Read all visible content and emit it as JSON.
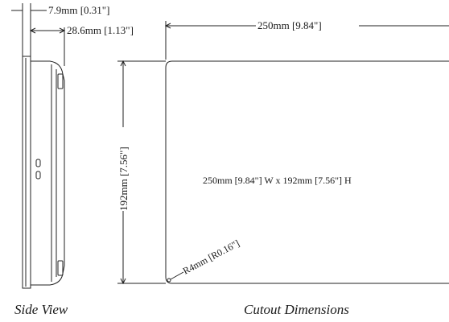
{
  "side_view": {
    "dim_bezel": "7.9mm [0.31\"]",
    "dim_depth": "28.6mm [1.13\"]",
    "caption": "Side View"
  },
  "cutout": {
    "dim_width": "250mm [9.84\"]",
    "dim_height": "192mm [7.56\"]",
    "size_text": "250mm [9.84\"] W x 192mm [7.56\"] H",
    "radius": "R4mm [R0.16\"]",
    "caption": "Cutout Dimensions"
  }
}
